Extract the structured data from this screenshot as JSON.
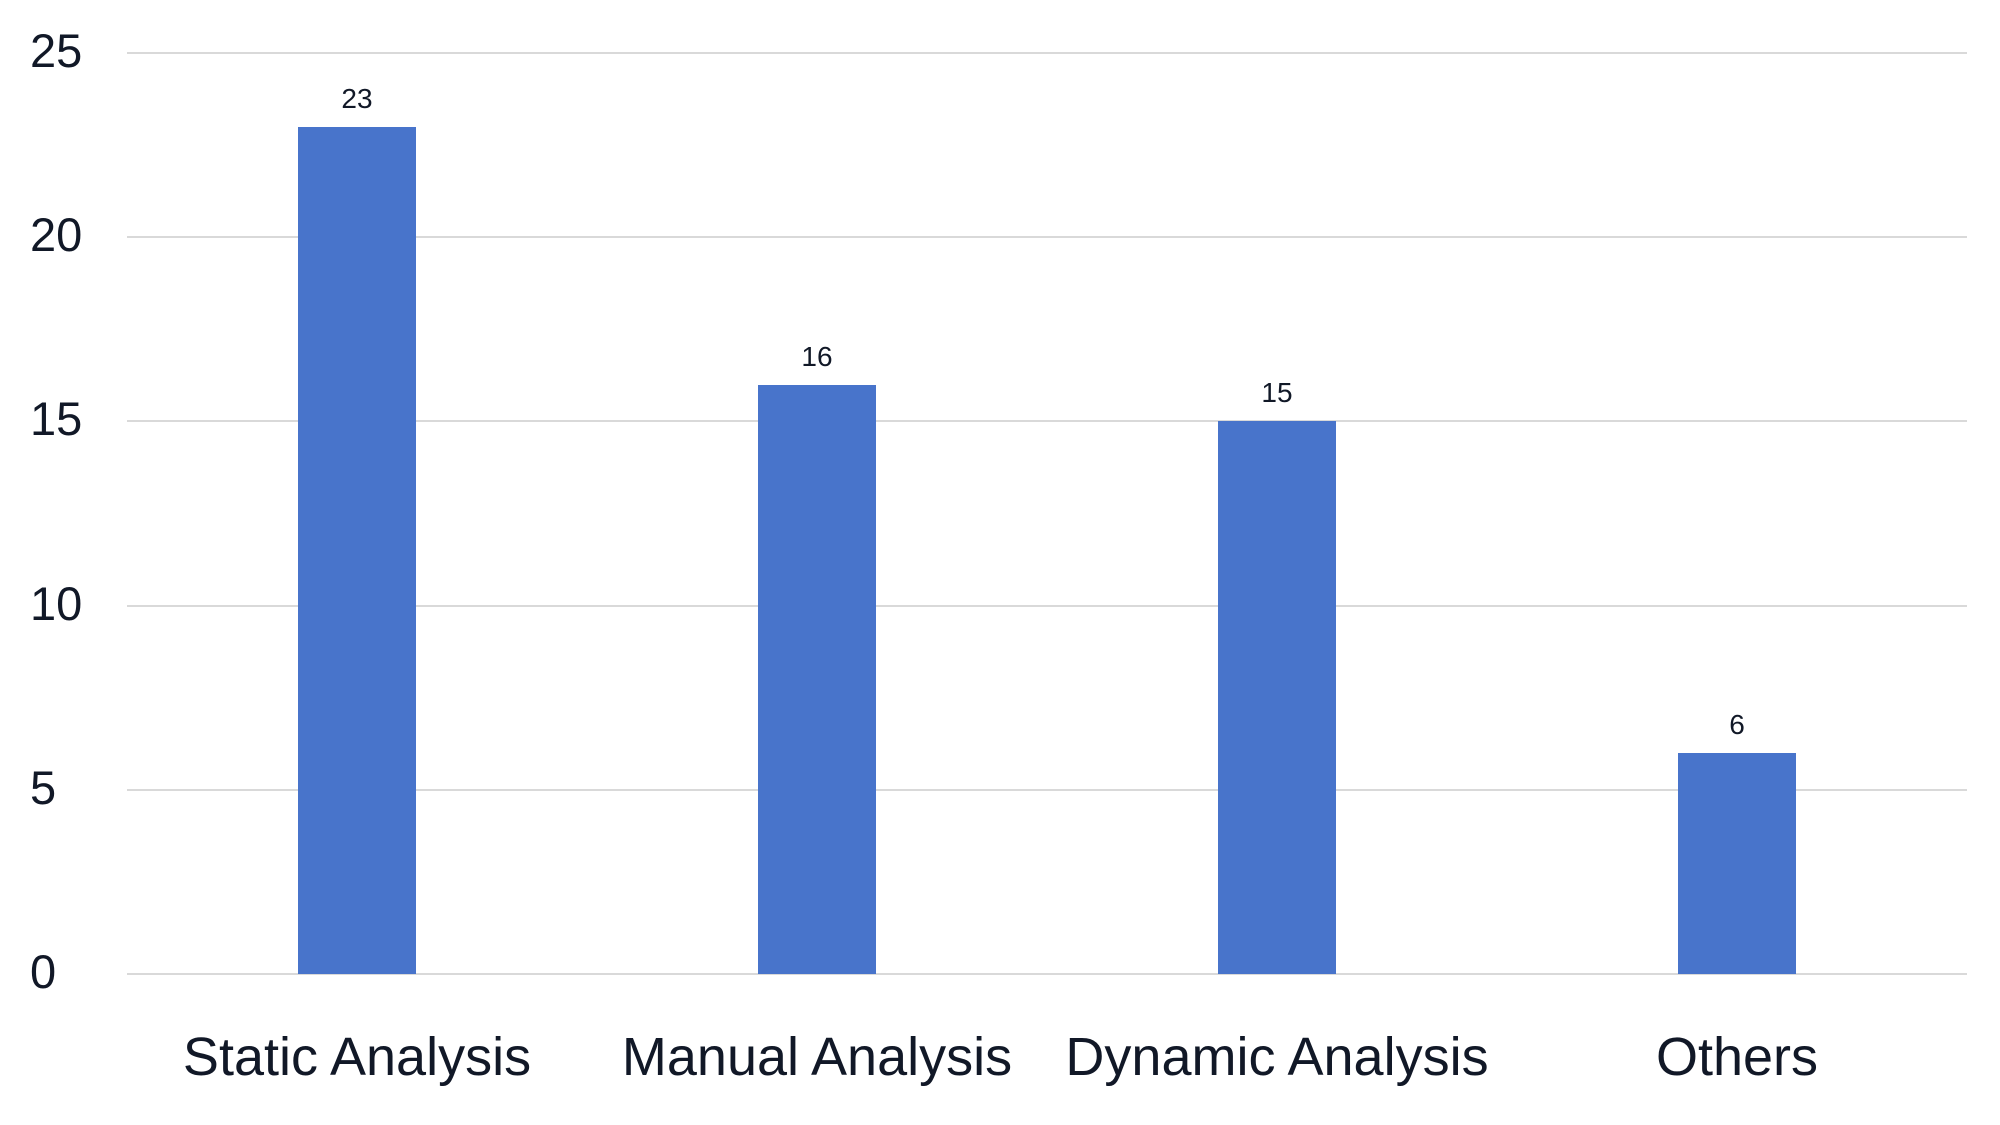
{
  "chart_data": {
    "type": "bar",
    "title": "",
    "xlabel": "",
    "ylabel": "",
    "categories": [
      "Static Analysis",
      "Manual Analysis",
      "Dynamic Analysis",
      "Others"
    ],
    "values": [
      23,
      16,
      15,
      6
    ],
    "data_labels": [
      "23",
      "16",
      "15",
      "6"
    ],
    "ylim": [
      0,
      25
    ],
    "yticks": [
      0,
      5,
      10,
      15,
      20,
      25
    ],
    "ytick_labels": [
      "0",
      "5",
      "10",
      "15",
      "20",
      "25"
    ],
    "grid": true,
    "legend": null,
    "colors": {
      "bar": "#4874CB",
      "grid": "#D9D9D9",
      "text": "#111827"
    }
  }
}
